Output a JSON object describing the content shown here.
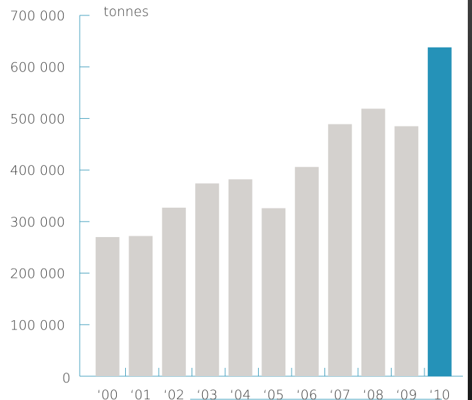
{
  "chart_data": {
    "type": "bar",
    "unit_label": "tonnes",
    "categories": [
      "‘00",
      "‘01",
      "‘02",
      "‘03",
      "‘04",
      "‘05",
      "‘06",
      "‘07",
      "‘08",
      "‘09",
      "‘10"
    ],
    "values": [
      270000,
      272000,
      327000,
      374000,
      382000,
      326000,
      406000,
      489000,
      519000,
      485000,
      638000
    ],
    "highlight_index": 10,
    "ylim": [
      0,
      700000
    ],
    "yticks": [
      {
        "value": 700000,
        "label": "700 000"
      },
      {
        "value": 600000,
        "label": "600 000"
      },
      {
        "value": 500000,
        "label": "500 000"
      },
      {
        "value": 400000,
        "label": "400 000"
      },
      {
        "value": 300000,
        "label": "300 000"
      },
      {
        "value": 200000,
        "label": "200 000"
      },
      {
        "value": 100000,
        "label": "100 000"
      },
      {
        "value": 0,
        "label": "0"
      }
    ],
    "grid": false,
    "colors": {
      "bar": "#d4d1ce",
      "highlight": "#2592b8",
      "axis": "#4aa3c0",
      "text": "#3a3a3a"
    }
  }
}
